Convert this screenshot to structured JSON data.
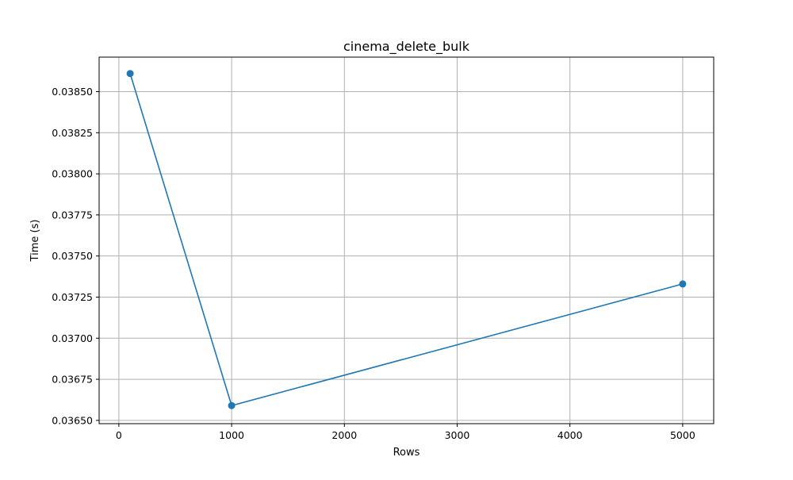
{
  "chart_data": {
    "type": "line",
    "title": "cinema_delete_bulk",
    "xlabel": "Rows",
    "ylabel": "Time (s)",
    "xlim": [
      -175,
      5275
    ],
    "ylim": [
      0.03648,
      0.03871
    ],
    "x_ticks": [
      0,
      1000,
      2000,
      3000,
      4000,
      5000
    ],
    "x_tick_labels": [
      "0",
      "1000",
      "2000",
      "3000",
      "4000",
      "5000"
    ],
    "y_ticks": [
      0.0365,
      0.03675,
      0.037,
      0.03725,
      0.0375,
      0.03775,
      0.038,
      0.03825,
      0.0385
    ],
    "y_tick_labels": [
      "0.03650",
      "0.03675",
      "0.03700",
      "0.03725",
      "0.03750",
      "0.03775",
      "0.03800",
      "0.03825",
      "0.03850"
    ],
    "grid": true,
    "series": [
      {
        "color": "#1f77b4",
        "marker": "circle",
        "x": [
          100,
          1000,
          5000
        ],
        "y": [
          0.03861,
          0.03659,
          0.03733
        ]
      }
    ]
  }
}
